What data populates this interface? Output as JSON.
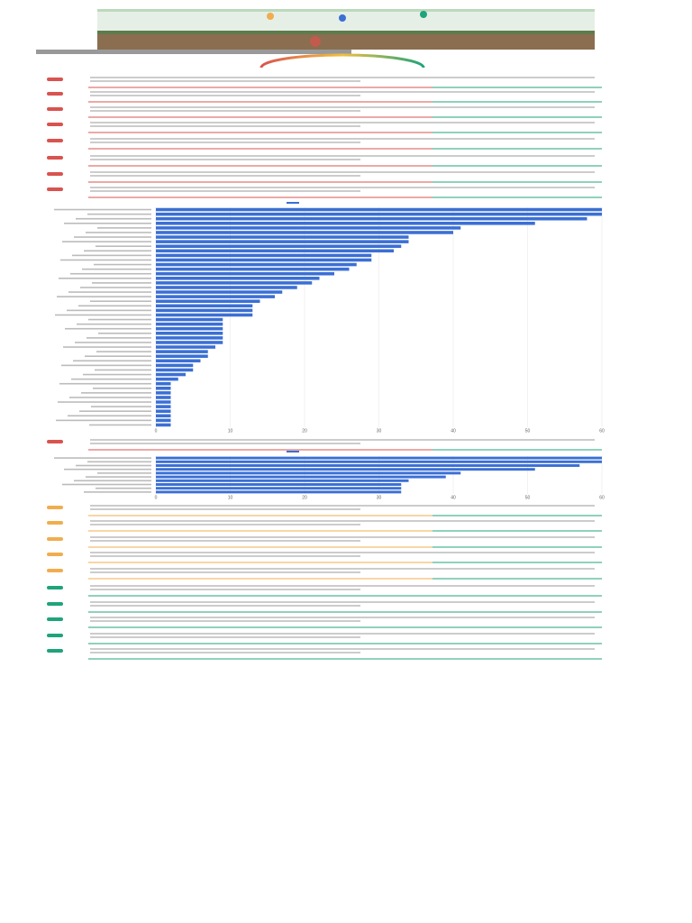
{
  "items_top": [
    {
      "color": "#d9534f"
    },
    {
      "color": "#d9534f"
    },
    {
      "color": "#d9534f"
    },
    {
      "color": "#d9534f"
    },
    {
      "color": "#d9534f"
    },
    {
      "color": "#d9534f"
    },
    {
      "color": "#d9534f"
    },
    {
      "color": "#d9534f"
    }
  ],
  "chart_data": [
    {
      "type": "bar",
      "orientation": "horizontal",
      "color": "#3b6fd4",
      "categories": [
        null,
        null,
        null,
        null,
        null,
        null,
        null,
        null,
        null,
        null,
        null,
        null,
        null,
        null,
        null,
        null,
        null,
        null,
        null,
        null,
        null,
        null,
        null,
        null,
        null,
        null,
        null,
        null,
        null,
        null,
        null,
        null,
        null,
        null,
        null,
        null,
        null,
        null,
        null,
        null,
        null,
        null,
        null,
        null,
        null,
        null,
        null,
        null
      ],
      "values": [
        60,
        60,
        58,
        51,
        41,
        40,
        34,
        34,
        33,
        32,
        29,
        29,
        27,
        26,
        24,
        22,
        21,
        19,
        17,
        16,
        14,
        13,
        13,
        13,
        9,
        9,
        9,
        9,
        9,
        9,
        8,
        7,
        7,
        6,
        5,
        5,
        4,
        3,
        2,
        2,
        2,
        2,
        2,
        2,
        2,
        2,
        2,
        2
      ],
      "xlim": [
        0,
        60
      ],
      "xticks": [
        0,
        10,
        20,
        30,
        40,
        50,
        60
      ],
      "grid": true
    },
    {
      "type": "bar",
      "orientation": "horizontal",
      "color": "#3b6fd4",
      "categories": [
        null,
        null,
        null,
        null,
        null,
        null,
        null,
        null,
        null,
        null
      ],
      "values": [
        60,
        60,
        57,
        51,
        41,
        39,
        34,
        33,
        33,
        33
      ],
      "xlim": [
        0,
        60
      ],
      "xticks": [
        0,
        10,
        20,
        30,
        40,
        50,
        60
      ],
      "grid": true
    }
  ],
  "items_mid": [
    {
      "color": "#d9534f"
    }
  ],
  "items_bottom": [
    {
      "color": "#f0ad4e"
    },
    {
      "color": "#f0ad4e"
    },
    {
      "color": "#f0ad4e"
    },
    {
      "color": "#f0ad4e"
    },
    {
      "color": "#f0ad4e"
    },
    {
      "color": "#1fa37a"
    },
    {
      "color": "#1fa37a"
    },
    {
      "color": "#1fa37a"
    },
    {
      "color": "#1fa37a"
    },
    {
      "color": "#1fa37a"
    }
  ]
}
